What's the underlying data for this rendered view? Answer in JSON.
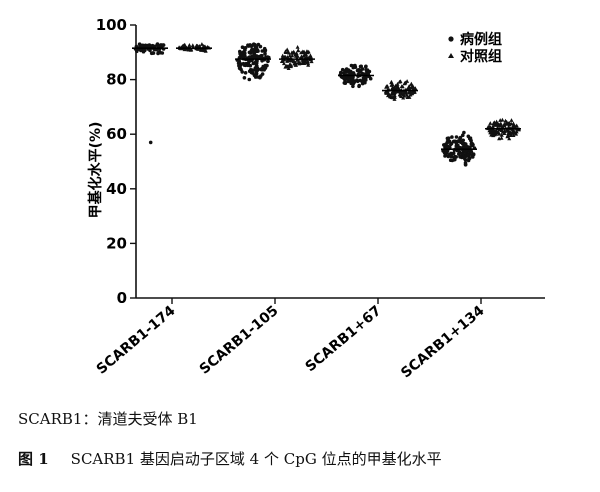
{
  "chart_data": {
    "type": "scatter",
    "ylabel": "甲基化水平(%)",
    "ylim": [
      0,
      100
    ],
    "yticks": [
      "0",
      "20",
      "40",
      "60",
      "80",
      "100"
    ],
    "categories": [
      "SCARB1-174",
      "SCARB1-105",
      "SCARB1+67",
      "SCARB1+134"
    ],
    "series": [
      {
        "name": "病例组",
        "marker": "circle",
        "color": "#111111",
        "values": [
          {
            "category": "SCARB1-174",
            "mean": 91.5,
            "spread": 2.0,
            "min": 88,
            "max": 93,
            "outliers": [
              57
            ],
            "n": 60
          },
          {
            "category": "SCARB1-105",
            "mean": 87.5,
            "spread": 5.5,
            "min": 72,
            "max": 93,
            "outliers": [],
            "n": 140
          },
          {
            "category": "SCARB1+67",
            "mean": 81.5,
            "spread": 3.0,
            "min": 75,
            "max": 86,
            "outliers": [],
            "n": 110
          },
          {
            "category": "SCARB1+134",
            "mean": 54.5,
            "spread": 4.5,
            "min": 42,
            "max": 69,
            "outliers": [],
            "n": 130
          }
        ]
      },
      {
        "name": "对照组",
        "marker": "triangle",
        "color": "#111111",
        "values": [
          {
            "category": "SCARB1-174",
            "mean": 91.5,
            "spread": 1.0,
            "min": 89,
            "max": 93,
            "outliers": [],
            "n": 60
          },
          {
            "category": "SCARB1-105",
            "mean": 87.5,
            "spread": 3.0,
            "min": 77,
            "max": 92,
            "outliers": [],
            "n": 110
          },
          {
            "category": "SCARB1+67",
            "mean": 76.0,
            "spread": 2.5,
            "min": 69,
            "max": 81,
            "outliers": [],
            "n": 110
          },
          {
            "category": "SCARB1+134",
            "mean": 62.0,
            "spread": 2.5,
            "min": 54,
            "max": 69,
            "outliers": [],
            "n": 120
          }
        ]
      }
    ],
    "legend": "top-right",
    "grid": false
  },
  "note": "SCARB1：清道夫受体 B1",
  "caption": {
    "label": "图 1",
    "text": "SCARB1 基因启动子区域 4 个 CpG 位点的甲基化水平"
  }
}
